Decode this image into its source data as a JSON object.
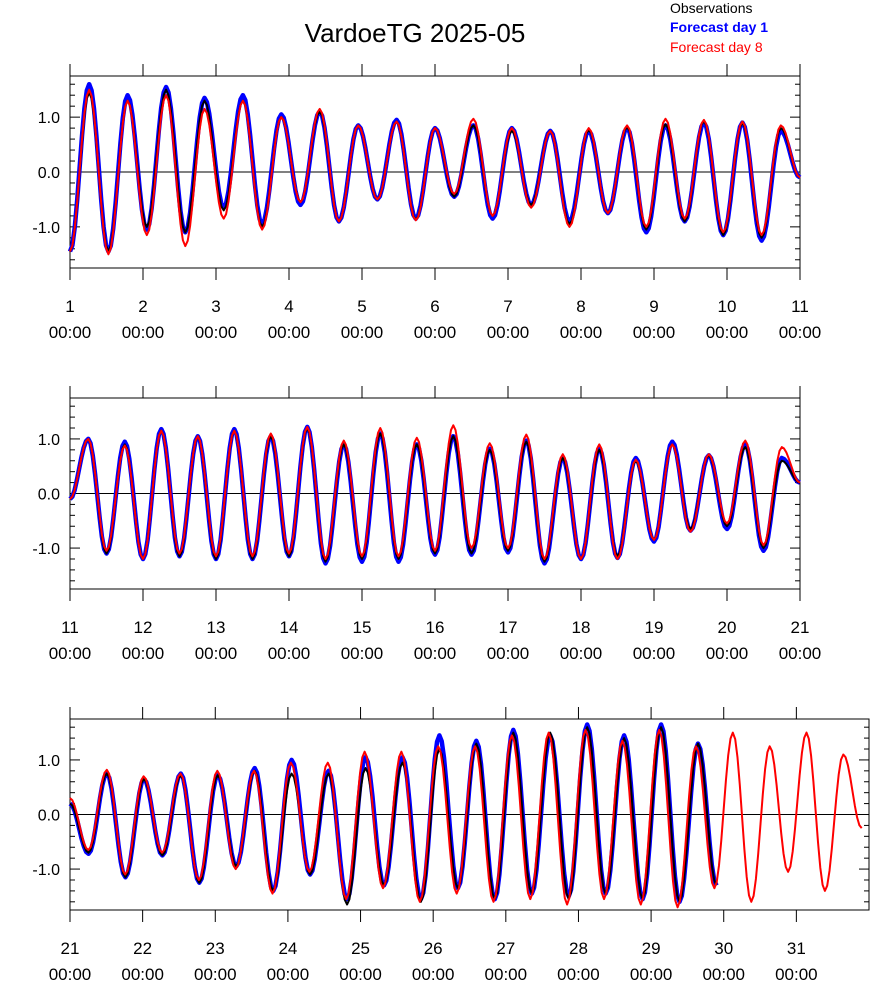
{
  "title": "VardoeTG 2025-05",
  "legend": {
    "placement": "top-right",
    "items": [
      {
        "label": "Observations",
        "color": "#000000",
        "bold": false
      },
      {
        "label": "Forecast day 1",
        "color": "#0000ff",
        "bold": true
      },
      {
        "label": "Forecast day 8",
        "color": "#ff0000",
        "bold": false
      }
    ]
  },
  "colors": {
    "observations": "#000000",
    "forecast_day1": "#0000ff",
    "forecast_day8": "#ff0000"
  },
  "chart_data": [
    {
      "type": "line",
      "x_range_days": [
        1,
        11
      ],
      "ylim": [
        -1.75,
        1.75
      ],
      "yticks": [
        -1.0,
        0.0,
        1.0
      ],
      "ytick_labels": [
        "-1.0",
        "0.0",
        "1.0"
      ],
      "xticks": [
        {
          "day": 1,
          "label": "1",
          "time": "00:00"
        },
        {
          "day": 2,
          "label": "2",
          "time": "00:00"
        },
        {
          "day": 3,
          "label": "3",
          "time": "00:00"
        },
        {
          "day": 4,
          "label": "4",
          "time": "00:00"
        },
        {
          "day": 5,
          "label": "5",
          "time": "00:00"
        },
        {
          "day": 6,
          "label": "6",
          "time": "00:00"
        },
        {
          "day": 7,
          "label": "7",
          "time": "00:00"
        },
        {
          "day": 8,
          "label": "8",
          "time": "00:00"
        },
        {
          "day": 9,
          "label": "9",
          "time": "00:00"
        },
        {
          "day": 10,
          "label": "10",
          "time": "00:00"
        },
        {
          "day": 11,
          "label": "11",
          "time": "00:00"
        }
      ],
      "series": [
        {
          "name": "Observations",
          "extrema": [
            -1.45,
            1.45,
            -1.45,
            1.3,
            -1.0,
            1.5,
            -1.1,
            1.3,
            -0.7,
            1.3,
            -1.0,
            1.0,
            -0.55,
            1.1,
            -0.9,
            0.85,
            -0.5,
            0.92,
            -0.87,
            0.8,
            -0.45,
            0.85,
            -0.8,
            0.75,
            -0.6,
            0.75,
            -0.95,
            0.77,
            -0.75,
            0.82,
            -1.05,
            0.87,
            -0.9,
            0.93,
            -1.15,
            0.9,
            -1.2,
            0.8,
            -0.1
          ],
          "obs_end_day": 11
        },
        {
          "name": "Forecast day 1",
          "extrema": [
            -1.45,
            1.6,
            -1.45,
            1.4,
            -1.05,
            1.55,
            -1.1,
            1.35,
            -0.65,
            1.4,
            -0.95,
            1.05,
            -0.6,
            1.1,
            -0.9,
            0.85,
            -0.5,
            0.95,
            -0.85,
            0.8,
            -0.45,
            0.85,
            -0.85,
            0.8,
            -0.6,
            0.75,
            -0.9,
            0.75,
            -0.75,
            0.8,
            -1.1,
            0.85,
            -0.9,
            0.9,
            -1.15,
            0.9,
            -1.25,
            0.75,
            -0.1
          ]
        },
        {
          "name": "Forecast day 8",
          "extrema": [
            -1.45,
            1.5,
            -1.5,
            1.3,
            -1.15,
            1.4,
            -1.35,
            1.15,
            -0.85,
            1.3,
            -1.05,
            1.0,
            -0.55,
            1.15,
            -0.9,
            0.85,
            -0.5,
            0.92,
            -0.88,
            0.8,
            -0.4,
            0.97,
            -0.8,
            0.8,
            -0.65,
            0.75,
            -1.0,
            0.8,
            -0.75,
            0.85,
            -1.0,
            0.97,
            -0.85,
            0.95,
            -1.1,
            0.92,
            -1.15,
            0.85,
            -0.1
          ]
        }
      ]
    },
    {
      "type": "line",
      "x_range_days": [
        11,
        21
      ],
      "ylim": [
        -1.75,
        1.75
      ],
      "yticks": [
        -1.0,
        0.0,
        1.0
      ],
      "ytick_labels": [
        "-1.0",
        "0.0",
        "1.0"
      ],
      "xticks": [
        {
          "day": 11,
          "label": "11",
          "time": "00:00"
        },
        {
          "day": 12,
          "label": "12",
          "time": "00:00"
        },
        {
          "day": 13,
          "label": "13",
          "time": "00:00"
        },
        {
          "day": 14,
          "label": "14",
          "time": "00:00"
        },
        {
          "day": 15,
          "label": "15",
          "time": "00:00"
        },
        {
          "day": 16,
          "label": "16",
          "time": "00:00"
        },
        {
          "day": 17,
          "label": "17",
          "time": "00:00"
        },
        {
          "day": 18,
          "label": "18",
          "time": "00:00"
        },
        {
          "day": 19,
          "label": "19",
          "time": "00:00"
        },
        {
          "day": 20,
          "label": "20",
          "time": "00:00"
        },
        {
          "day": 21,
          "label": "21",
          "time": "00:00"
        }
      ],
      "series": [
        {
          "name": "Observations",
          "extrema": [
            -0.1,
            1.0,
            -1.1,
            0.9,
            -1.2,
            1.15,
            -1.15,
            1.05,
            -1.2,
            1.15,
            -1.2,
            1.05,
            -1.15,
            1.2,
            -1.25,
            0.9,
            -1.2,
            1.1,
            -1.2,
            0.9,
            -1.1,
            1.05,
            -1.1,
            0.8,
            -1.05,
            0.95,
            -1.25,
            0.65,
            -1.2,
            0.8,
            -1.15,
            0.6,
            -0.85,
            0.9,
            -0.65,
            0.7,
            -0.6,
            0.85,
            -1.0,
            0.6,
            0.2
          ]
        },
        {
          "name": "Forecast day 1",
          "extrema": [
            -0.1,
            1.0,
            -1.1,
            0.95,
            -1.2,
            1.18,
            -1.15,
            1.05,
            -1.2,
            1.18,
            -1.2,
            1.05,
            -1.15,
            1.22,
            -1.28,
            0.9,
            -1.25,
            1.1,
            -1.25,
            0.9,
            -1.12,
            1.05,
            -1.12,
            0.82,
            -1.08,
            0.97,
            -1.28,
            0.65,
            -1.2,
            0.82,
            -1.18,
            0.65,
            -0.88,
            0.95,
            -0.68,
            0.7,
            -0.65,
            0.9,
            -1.05,
            0.65,
            0.2
          ]
        },
        {
          "name": "Forecast day 8",
          "extrema": [
            -0.1,
            1.0,
            -1.05,
            0.88,
            -1.2,
            1.15,
            -1.1,
            1.05,
            -1.15,
            1.15,
            -1.15,
            1.1,
            -1.1,
            1.22,
            -1.2,
            0.97,
            -1.15,
            1.2,
            -1.15,
            1.02,
            -1.05,
            1.25,
            -1.0,
            0.92,
            -1.0,
            1.08,
            -1.2,
            0.72,
            -1.2,
            0.9,
            -1.2,
            0.62,
            -0.85,
            0.9,
            -0.7,
            0.72,
            -0.55,
            0.97,
            -0.95,
            0.85,
            0.2
          ]
        }
      ]
    },
    {
      "type": "line",
      "x_range_days": [
        21,
        32
      ],
      "ylim": [
        -1.75,
        1.75
      ],
      "yticks": [
        -1.0,
        0.0,
        1.0
      ],
      "ytick_labels": [
        "-1.0",
        "0.0",
        "1.0"
      ],
      "xticks": [
        {
          "day": 21,
          "label": "21",
          "time": "00:00"
        },
        {
          "day": 22,
          "label": "22",
          "time": "00:00"
        },
        {
          "day": 23,
          "label": "23",
          "time": "00:00"
        },
        {
          "day": 24,
          "label": "24",
          "time": "00:00"
        },
        {
          "day": 25,
          "label": "25",
          "time": "00:00"
        },
        {
          "day": 26,
          "label": "26",
          "time": "00:00"
        },
        {
          "day": 27,
          "label": "27",
          "time": "00:00"
        },
        {
          "day": 28,
          "label": "28",
          "time": "00:00"
        },
        {
          "day": 29,
          "label": "29",
          "time": "00:00"
        },
        {
          "day": 30,
          "label": "30",
          "time": "00:00"
        },
        {
          "day": 31,
          "label": "31",
          "time": "00:00"
        }
      ],
      "series": [
        {
          "name": "Observations",
          "extrema": [
            0.2,
            -0.7,
            0.75,
            -1.15,
            0.65,
            -0.75,
            0.72,
            -1.25,
            0.72,
            -0.95,
            0.8,
            -1.4,
            0.75,
            -1.1,
            0.75,
            -1.65,
            0.85,
            -1.3,
            0.95,
            -1.6,
            1.2,
            -1.35,
            1.3,
            -1.55,
            1.5,
            -1.45,
            1.5,
            -1.55,
            1.6,
            -1.45,
            1.4,
            -1.55,
            1.6,
            -1.6,
            1.3,
            -1.3
          ],
          "end_day": 29.9
        },
        {
          "name": "Forecast day 1",
          "extrema": [
            0.2,
            -0.72,
            0.75,
            -1.15,
            0.65,
            -0.75,
            0.75,
            -1.25,
            0.72,
            -0.95,
            0.85,
            -1.4,
            1.0,
            -1.1,
            0.8,
            -1.55,
            1.05,
            -1.3,
            1.05,
            -1.55,
            1.45,
            -1.35,
            1.35,
            -1.55,
            1.55,
            -1.45,
            1.45,
            -1.5,
            1.65,
            -1.45,
            1.45,
            -1.55,
            1.65,
            -1.6,
            1.3,
            -1.3
          ],
          "end_day": 29.9
        },
        {
          "name": "Forecast day 8",
          "extrema": [
            0.3,
            -0.65,
            0.82,
            -1.1,
            0.7,
            -0.7,
            0.75,
            -1.2,
            0.8,
            -1.0,
            0.8,
            -1.45,
            0.95,
            -1.05,
            0.95,
            -1.55,
            1.15,
            -1.35,
            1.15,
            -1.6,
            1.25,
            -1.45,
            1.25,
            -1.6,
            1.45,
            -1.55,
            1.5,
            -1.65,
            1.55,
            -1.55,
            1.35,
            -1.65,
            1.55,
            -1.7,
            1.25,
            -1.35,
            1.5,
            -1.6,
            1.25,
            -1.05,
            1.5,
            -1.4,
            1.1,
            -0.25
          ],
          "end_day": 31.9
        }
      ]
    }
  ]
}
